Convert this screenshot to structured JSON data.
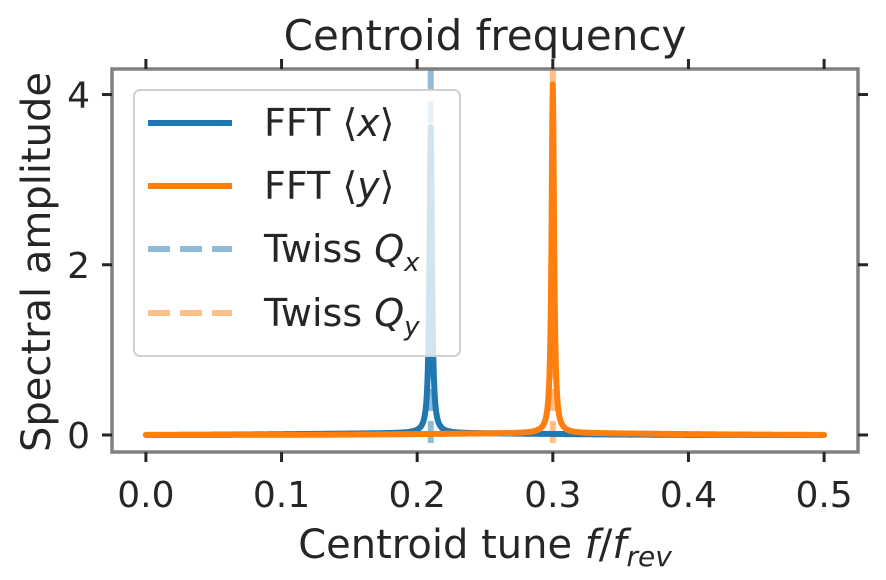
{
  "chart_data": {
    "type": "line",
    "title": "Centroid frequency",
    "xlabel": {
      "main": "Centroid tune ",
      "var": "f",
      "slash": "/",
      "var2": "f",
      "sub": "rev"
    },
    "ylabel": "Spectral amplitude",
    "xlim": [
      -0.025,
      0.525
    ],
    "ylim": [
      -0.2,
      4.3
    ],
    "x_ticks": [
      0.0,
      0.1,
      0.2,
      0.3,
      0.4,
      0.5
    ],
    "x_tick_labels": [
      "0.0",
      "0.1",
      "0.2",
      "0.3",
      "0.4",
      "0.5"
    ],
    "y_ticks": [
      0,
      2,
      4
    ],
    "y_tick_labels": [
      "0",
      "2",
      "4"
    ],
    "grid": false,
    "legend_position": "upper-left",
    "series": [
      {
        "name": "FFT ⟨x⟩",
        "color": "#1f77b4",
        "style": "solid",
        "kind": "spectrum",
        "peak_x": 0.21,
        "peak_y": 3.6,
        "baseline": 0.0,
        "points": [
          [
            0.0,
            0.0
          ],
          [
            0.1,
            0.01
          ],
          [
            0.15,
            0.02
          ],
          [
            0.19,
            0.06
          ],
          [
            0.205,
            0.3
          ],
          [
            0.21,
            3.6
          ],
          [
            0.215,
            0.3
          ],
          [
            0.23,
            0.05
          ],
          [
            0.3,
            0.02
          ],
          [
            0.4,
            0.01
          ],
          [
            0.5,
            0.0
          ]
        ]
      },
      {
        "name": "FFT ⟨y⟩",
        "color": "#ff7f0e",
        "style": "solid",
        "kind": "spectrum",
        "peak_x": 0.3,
        "peak_y": 4.1,
        "baseline": 0.0,
        "points": [
          [
            0.0,
            0.0
          ],
          [
            0.1,
            0.01
          ],
          [
            0.2,
            0.03
          ],
          [
            0.28,
            0.1
          ],
          [
            0.295,
            0.4
          ],
          [
            0.3,
            4.1
          ],
          [
            0.305,
            0.4
          ],
          [
            0.32,
            0.08
          ],
          [
            0.4,
            0.02
          ],
          [
            0.5,
            0.01
          ]
        ]
      },
      {
        "name": "Twiss Q_x",
        "label_text": "Twiss ",
        "label_var": "Q",
        "label_sub": "x",
        "color": "#1f77b4",
        "style": "dashed",
        "opacity": 0.5,
        "kind": "vline",
        "x": 0.21
      },
      {
        "name": "Twiss Q_y",
        "label_text": "Twiss ",
        "label_var": "Q",
        "label_sub": "y",
        "color": "#ff7f0e",
        "style": "dashed",
        "opacity": 0.5,
        "kind": "vline",
        "x": 0.3
      }
    ],
    "legend": [
      {
        "text": "FFT ⟨",
        "var": "x",
        "close": "⟩"
      },
      {
        "text": "FFT ⟨",
        "var": "y",
        "close": "⟩"
      },
      {
        "text": "Twiss ",
        "var": "Q",
        "sub": "x"
      },
      {
        "text": "Twiss ",
        "var": "Q",
        "sub": "y"
      }
    ]
  }
}
